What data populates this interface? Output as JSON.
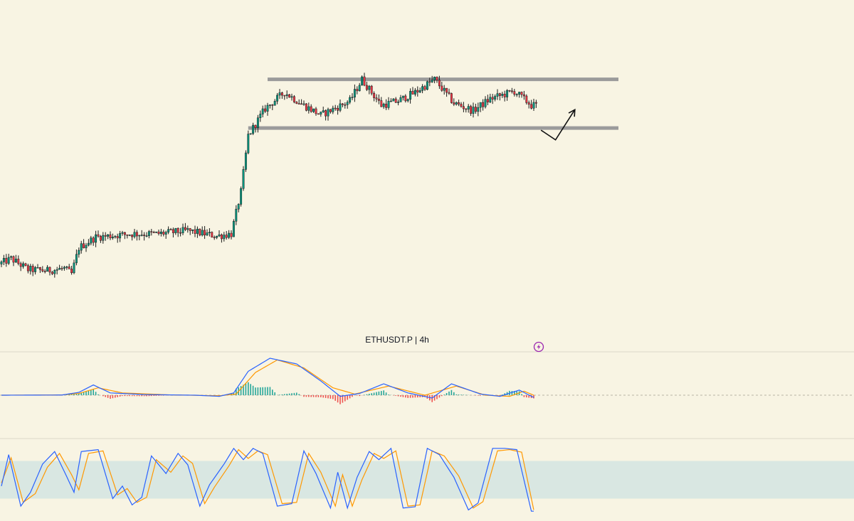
{
  "header": {
    "symbol_label": "ETHUSDT.P | 4h",
    "alert_icon": "lightning-alert-icon"
  },
  "colors": {
    "background": "#f8f4e3",
    "candle_up": "#089981",
    "candle_down": "#f23645",
    "wick": "#1a1a1a",
    "level_line": "#9b9b9b",
    "macd_line": "#2962ff",
    "signal_line": "#ff9800",
    "hist_up": "#26a69a",
    "hist_down": "#ef5350",
    "stoch_k": "#2962ff",
    "stoch_d": "#ff9800",
    "stoch_band": "#d9e7e2",
    "alert_icon": "#9c27b0"
  },
  "chart_data": [
    {
      "type": "candlestick",
      "x_range": [
        0,
        255
      ],
      "ylim": [
        1600,
        4100
      ],
      "anchors": [
        [
          0,
          2050
        ],
        [
          5,
          2100
        ],
        [
          12,
          2000
        ],
        [
          20,
          1990
        ],
        [
          27,
          2010
        ],
        [
          30,
          1960
        ],
        [
          33,
          2200
        ],
        [
          40,
          2300
        ],
        [
          55,
          2330
        ],
        [
          65,
          2330
        ],
        [
          78,
          2360
        ],
        [
          90,
          2310
        ],
        [
          96,
          2330
        ],
        [
          100,
          2720
        ],
        [
          103,
          3240
        ],
        [
          110,
          3490
        ],
        [
          118,
          3640
        ],
        [
          126,
          3520
        ],
        [
          133,
          3430
        ],
        [
          145,
          3560
        ],
        [
          150,
          3760
        ],
        [
          158,
          3520
        ],
        [
          165,
          3560
        ],
        [
          172,
          3640
        ],
        [
          180,
          3760
        ],
        [
          188,
          3540
        ],
        [
          196,
          3470
        ],
        [
          203,
          3580
        ],
        [
          213,
          3650
        ],
        [
          220,
          3520
        ]
      ],
      "levels": [
        {
          "price": 3760,
          "x_start": 110,
          "x_end": 255
        },
        {
          "price": 3310,
          "x_start": 102,
          "x_end": 255
        }
      ],
      "projection": [
        [
          223,
          3290
        ],
        [
          229,
          3200
        ],
        [
          237,
          3480
        ]
      ]
    },
    {
      "type": "line",
      "indicator": "macd",
      "x_range": [
        0,
        220
      ],
      "series": [
        {
          "role": "macd",
          "points": [
            [
              0,
              0
            ],
            [
              25,
              0.3
            ],
            [
              32,
              5
            ],
            [
              38,
              18
            ],
            [
              45,
              4
            ],
            [
              60,
              1
            ],
            [
              80,
              0
            ],
            [
              90,
              -2
            ],
            [
              96,
              4
            ],
            [
              102,
              42
            ],
            [
              111,
              65
            ],
            [
              122,
              55
            ],
            [
              132,
              25
            ],
            [
              140,
              -2
            ],
            [
              148,
              3
            ],
            [
              158,
              20
            ],
            [
              168,
              4
            ],
            [
              178,
              -5
            ],
            [
              186,
              20
            ],
            [
              198,
              2
            ],
            [
              206,
              -2
            ],
            [
              214,
              9
            ],
            [
              220,
              -4
            ]
          ]
        },
        {
          "role": "signal",
          "points": [
            [
              0,
              0
            ],
            [
              25,
              0.5
            ],
            [
              32,
              3
            ],
            [
              40,
              13
            ],
            [
              50,
              4
            ],
            [
              70,
              0.5
            ],
            [
              90,
              -1
            ],
            [
              97,
              2
            ],
            [
              105,
              40
            ],
            [
              114,
              62
            ],
            [
              125,
              48
            ],
            [
              137,
              13
            ],
            [
              146,
              2
            ],
            [
              160,
              16
            ],
            [
              175,
              0
            ],
            [
              188,
              16
            ],
            [
              200,
              0
            ],
            [
              210,
              -2
            ],
            [
              216,
              7
            ],
            [
              220,
              0
            ]
          ]
        }
      ],
      "ylim": [
        -70,
        70
      ]
    },
    {
      "type": "line",
      "indicator": "stochastic_rsi",
      "x_range": [
        0,
        220
      ],
      "ylim": [
        -10,
        110
      ],
      "band": [
        20,
        80
      ],
      "series": [
        {
          "role": "k",
          "points": [
            [
              0,
              40
            ],
            [
              3,
              90
            ],
            [
              8,
              8
            ],
            [
              12,
              30
            ],
            [
              17,
              75
            ],
            [
              22,
              95
            ],
            [
              27,
              55
            ],
            [
              30,
              30
            ],
            [
              33,
              95
            ],
            [
              40,
              98
            ],
            [
              46,
              20
            ],
            [
              50,
              40
            ],
            [
              54,
              10
            ],
            [
              58,
              22
            ],
            [
              62,
              88
            ],
            [
              68,
              60
            ],
            [
              73,
              92
            ],
            [
              77,
              74
            ],
            [
              82,
              8
            ],
            [
              86,
              42
            ],
            [
              92,
              75
            ],
            [
              96,
              100
            ],
            [
              100,
              82
            ],
            [
              104,
              100
            ],
            [
              108,
              92
            ],
            [
              114,
              8
            ],
            [
              120,
              12
            ],
            [
              125,
              96
            ],
            [
              130,
              60
            ],
            [
              136,
              5
            ],
            [
              139,
              62
            ],
            [
              143,
              5
            ],
            [
              147,
              54
            ],
            [
              152,
              95
            ],
            [
              156,
              82
            ],
            [
              161,
              100
            ],
            [
              166,
              5
            ],
            [
              171,
              7
            ],
            [
              176,
              100
            ],
            [
              181,
              90
            ],
            [
              187,
              54
            ],
            [
              193,
              2
            ],
            [
              197,
              13
            ],
            [
              203,
              100
            ],
            [
              208,
              100
            ],
            [
              213,
              98
            ],
            [
              219,
              0
            ]
          ]
        },
        {
          "role": "d",
          "points": [
            [
              0,
              45
            ],
            [
              4,
              85
            ],
            [
              9,
              14
            ],
            [
              14,
              28
            ],
            [
              19,
              70
            ],
            [
              24,
              92
            ],
            [
              29,
              58
            ],
            [
              32,
              34
            ],
            [
              36,
              92
            ],
            [
              42,
              96
            ],
            [
              48,
              26
            ],
            [
              52,
              36
            ],
            [
              56,
              14
            ],
            [
              60,
              22
            ],
            [
              64,
              82
            ],
            [
              70,
              62
            ],
            [
              75,
              88
            ],
            [
              79,
              76
            ],
            [
              84,
              12
            ],
            [
              88,
              38
            ],
            [
              94,
              72
            ],
            [
              98,
              98
            ],
            [
              102,
              84
            ],
            [
              106,
              96
            ],
            [
              110,
              90
            ],
            [
              116,
              12
            ],
            [
              122,
              14
            ],
            [
              127,
              92
            ],
            [
              132,
              62
            ],
            [
              138,
              8
            ],
            [
              141,
              58
            ],
            [
              145,
              8
            ],
            [
              149,
              50
            ],
            [
              154,
              92
            ],
            [
              158,
              84
            ],
            [
              163,
              96
            ],
            [
              168,
              8
            ],
            [
              173,
              10
            ],
            [
              178,
              96
            ],
            [
              183,
              88
            ],
            [
              189,
              56
            ],
            [
              195,
              5
            ],
            [
              199,
              15
            ],
            [
              205,
              96
            ],
            [
              210,
              98
            ],
            [
              215,
              94
            ],
            [
              220,
              2
            ]
          ]
        }
      ]
    }
  ]
}
